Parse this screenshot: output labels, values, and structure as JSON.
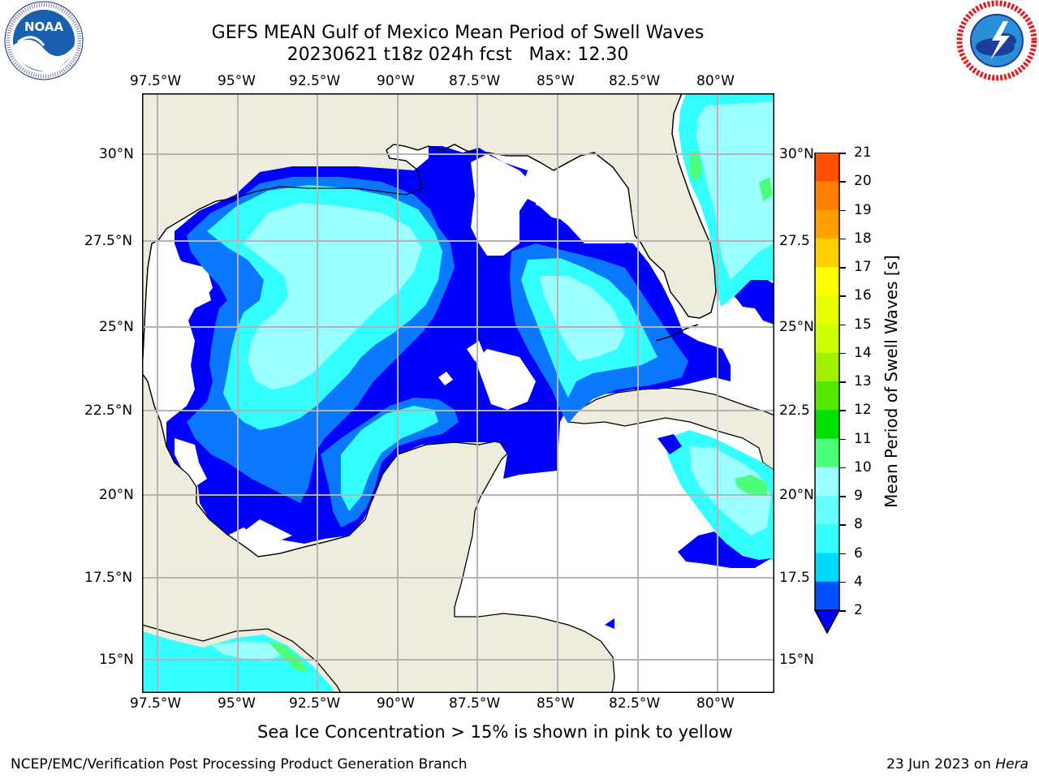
{
  "titles": {
    "line1": "GEFS MEAN Gulf of Mexico Mean Period of Swell Waves",
    "line2": "20230621 t18z 024h fcst   Max: 12.30"
  },
  "logos": {
    "noaa": {
      "text": "NOAA",
      "ring_text": "NATIONAL OCEANIC AND ATMOSPHERIC ADMINISTRATION · U.S. DEPARTMENT OF COMMERCE"
    },
    "nws": {
      "ring_text": "NATIONAL WEATHER SERVICE"
    }
  },
  "map": {
    "lon_ticks_top": [
      "97.5°W",
      "95°W",
      "92.5°W",
      "90°W",
      "87.5°W",
      "85°W",
      "82.5°W",
      "80°W"
    ],
    "lon_ticks_bottom": [
      "97.5°W",
      "95°W",
      "92.5°W",
      "90°W",
      "87.5°W",
      "85°W",
      "82.5°W",
      "80°W"
    ],
    "lat_ticks_left": [
      "30°N",
      "27.5°N",
      "25°N",
      "22.5°N",
      "20°N",
      "17.5°N",
      "15°N"
    ],
    "lat_ticks_right": [
      "30°N",
      "27.5",
      "25°N",
      "22.5",
      "20°N",
      "17.5",
      "15°N"
    ],
    "land_color": "#eeecdc",
    "grid_color": "#b4b4b4"
  },
  "colorbar": {
    "title": "Mean Period of Swell Waves [s]",
    "labels": [
      "2",
      "4",
      "6",
      "8",
      "9",
      "10",
      "11",
      "12",
      "13",
      "14",
      "15",
      "16",
      "17",
      "18",
      "19",
      "20",
      "21"
    ],
    "colors": [
      "#0050ff",
      "#00d8ff",
      "#34ffff",
      "#66ffff",
      "#9bffff",
      "#4cff7a",
      "#00e000",
      "#55e800",
      "#a0f000",
      "#ccff00",
      "#e8ff00",
      "#ffff00",
      "#ffd000",
      "#ffa000",
      "#ff8000",
      "#ff5000",
      "#ff2000",
      "#ff0000"
    ],
    "extend_color": "#0000ff"
  },
  "notes": {
    "ice": "Sea Ice Concentration > 15% is shown in pink to yellow",
    "credit": "NCEP/EMC/Verification Post Processing Product Generation Branch",
    "date_prefix": "23 Jun 2023 on ",
    "date_host": "Hera"
  }
}
